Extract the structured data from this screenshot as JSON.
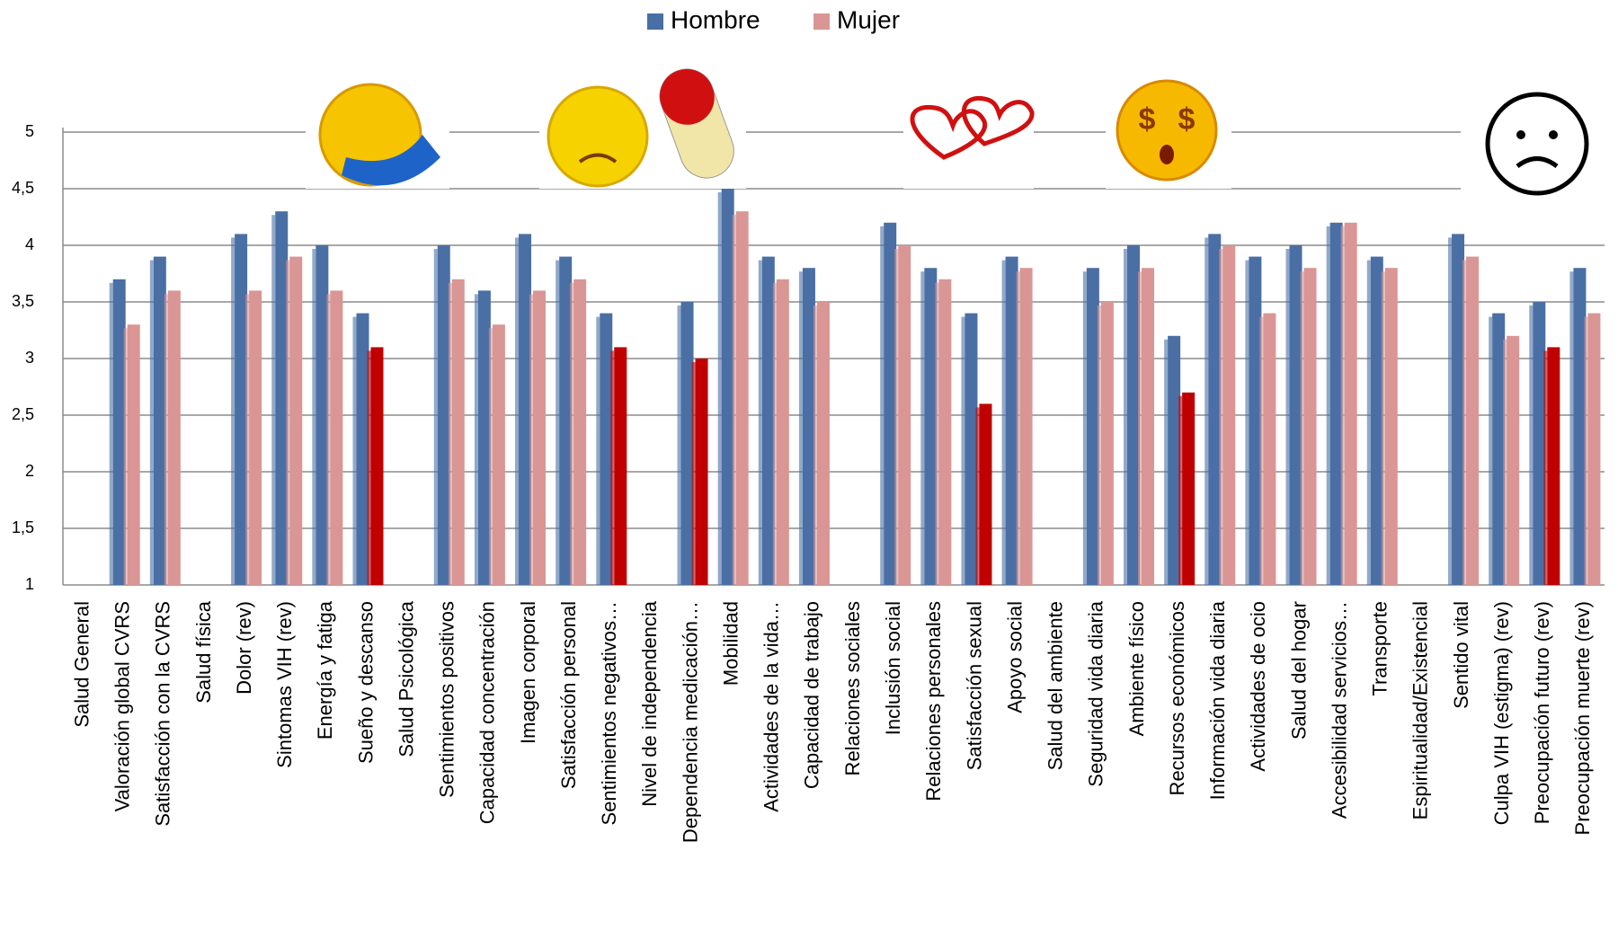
{
  "chart_data": {
    "type": "bar",
    "categories": [
      "Salud General",
      "Valoración global CVRS",
      "Satisfacción con la CVRS",
      "Salud física",
      "Dolor (rev)",
      "Sintomas VIH (rev)",
      "Energía y fatiga",
      "Sueño y descanso",
      "Salud Psicológica",
      "Sentimientos positivos",
      "Capacidad concentración",
      "Imagen corporal",
      "Satisfacción personal",
      "Sentimientos negativos…",
      "Nivel de independencia",
      "Dependencia medicación…",
      "Mobilidad",
      "Actividades de la vida…",
      "Capacidad de trabajo",
      "Relaciones sociales",
      "Inclusión social",
      "Relaciones personales",
      "Satisfacción sexual",
      "Apoyo social",
      "Salud del ambiente",
      "Seguridad vida diaria",
      "Ambiente físico",
      "Recursos económicos",
      "Información vida diaria",
      "Actividades de ocio",
      "Salud del hogar",
      "Accesibilidad servicios…",
      "Transporte",
      "Espiritualidad/Existencial",
      "Sentido vital",
      "Culpa VIH (estigma) (rev)",
      "Preocupación futuro (rev)",
      "Preocupación muerte (rev)"
    ],
    "series": [
      {
        "name": "Hombre",
        "color": "#4a6fa5",
        "values": [
          null,
          3.7,
          3.9,
          null,
          4.1,
          4.3,
          4.0,
          3.4,
          null,
          4.0,
          3.6,
          4.1,
          3.9,
          3.4,
          null,
          3.5,
          4.5,
          3.9,
          3.8,
          null,
          4.2,
          3.8,
          3.4,
          3.9,
          null,
          3.8,
          4.0,
          3.2,
          4.1,
          3.9,
          4.0,
          4.2,
          3.9,
          null,
          4.1,
          3.4,
          3.5,
          3.8
        ]
      },
      {
        "name": "Mujer",
        "color": "#d99694",
        "values": [
          null,
          3.3,
          3.6,
          null,
          3.6,
          3.9,
          3.6,
          3.1,
          null,
          3.7,
          3.3,
          3.6,
          3.7,
          3.1,
          null,
          3.0,
          4.3,
          3.7,
          3.5,
          null,
          4.0,
          3.7,
          2.6,
          3.8,
          null,
          3.5,
          3.8,
          2.7,
          4.0,
          3.4,
          3.8,
          4.2,
          3.8,
          null,
          3.9,
          3.2,
          3.1,
          3.4
        ],
        "colors": [
          null,
          "#d99694",
          "#d99694",
          null,
          "#d99694",
          "#d99694",
          "#d99694",
          "#c00000",
          null,
          "#d99694",
          "#d99694",
          "#d99694",
          "#d99694",
          "#c00000",
          null,
          "#c00000",
          "#d99694",
          "#d99694",
          "#d99694",
          null,
          "#d99694",
          "#d99694",
          "#c00000",
          "#d99694",
          null,
          "#d99694",
          "#d99694",
          "#c00000",
          "#d99694",
          "#d99694",
          "#d99694",
          "#d99694",
          "#d99694",
          null,
          "#d99694",
          "#d99694",
          "#c00000",
          "#d99694"
        ]
      }
    ],
    "ylim": [
      1,
      5
    ],
    "yticks": [
      1,
      {
        "value": 1.5,
        "label": "1,5"
      },
      2,
      {
        "value": 2.5,
        "label": "2,5"
      },
      3,
      {
        "value": 3.5,
        "label": "3,5"
      },
      4,
      {
        "value": 4.5,
        "label": "4,5"
      },
      5
    ],
    "grid": true,
    "legend": "top"
  }
}
